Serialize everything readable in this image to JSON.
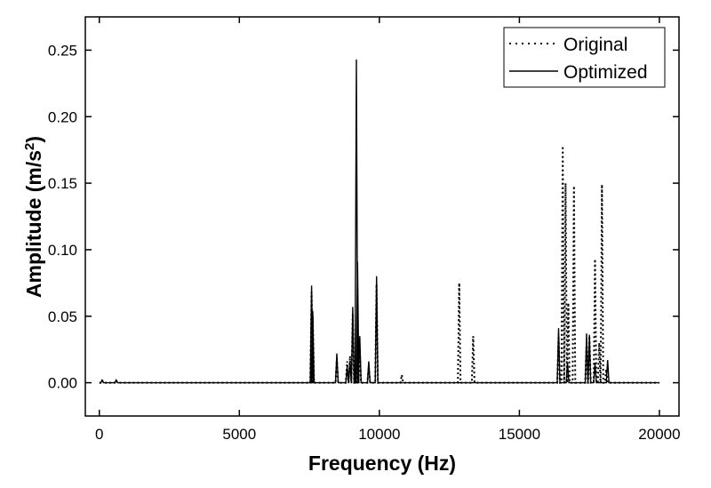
{
  "chart_data": {
    "type": "line",
    "title": "",
    "xlabel": "Frequency (Hz)",
    "ylabel_main": "Amplitude (m/s",
    "ylabel_sup": "2",
    "ylabel_end": ")",
    "xlim": [
      -500,
      20700
    ],
    "ylim": [
      -0.025,
      0.275
    ],
    "x_ticks": [
      0,
      5000,
      10000,
      15000,
      20000
    ],
    "x_tick_labels": [
      "0",
      "5000",
      "10000",
      "15000",
      "20000"
    ],
    "y_ticks": [
      0.0,
      0.05,
      0.1,
      0.15,
      0.2,
      0.25
    ],
    "y_tick_labels": [
      "0.00",
      "0.05",
      "0.10",
      "0.15",
      "0.20",
      "0.25"
    ],
    "grid": false,
    "legend_position": "top-right",
    "series": [
      {
        "name": "Original",
        "style": "dotted",
        "color": "#000000",
        "peaks": [
          [
            100,
            0.002
          ],
          [
            600,
            0.002
          ],
          [
            7580,
            0.068
          ],
          [
            7620,
            0.05
          ],
          [
            8480,
            0.018
          ],
          [
            8850,
            0.016
          ],
          [
            8950,
            0.02
          ],
          [
            9050,
            0.052
          ],
          [
            9180,
            0.01
          ],
          [
            9300,
            0.024
          ],
          [
            9620,
            0.012
          ],
          [
            9900,
            0.074
          ],
          [
            10800,
            0.006
          ],
          [
            12850,
            0.075
          ],
          [
            13350,
            0.035
          ],
          [
            16400,
            0.035
          ],
          [
            16550,
            0.178
          ],
          [
            16650,
            0.15
          ],
          [
            16750,
            0.06
          ],
          [
            16950,
            0.148
          ],
          [
            17400,
            0.03
          ],
          [
            17500,
            0.035
          ],
          [
            17700,
            0.093
          ],
          [
            17850,
            0.03
          ],
          [
            17950,
            0.149
          ],
          [
            18100,
            0.01
          ]
        ]
      },
      {
        "name": "Optimized",
        "style": "solid",
        "color": "#000000",
        "peaks": [
          [
            100,
            0.002
          ],
          [
            600,
            0.002
          ],
          [
            7580,
            0.073
          ],
          [
            7620,
            0.054
          ],
          [
            8480,
            0.022
          ],
          [
            8850,
            0.012
          ],
          [
            8950,
            0.016
          ],
          [
            9050,
            0.057
          ],
          [
            9180,
            0.243
          ],
          [
            9220,
            0.091
          ],
          [
            9300,
            0.035
          ],
          [
            9620,
            0.016
          ],
          [
            9900,
            0.08
          ],
          [
            16400,
            0.041
          ],
          [
            16720,
            0.015
          ],
          [
            17400,
            0.037
          ],
          [
            17500,
            0.036
          ],
          [
            17700,
            0.015
          ],
          [
            18150,
            0.017
          ]
        ]
      }
    ]
  }
}
